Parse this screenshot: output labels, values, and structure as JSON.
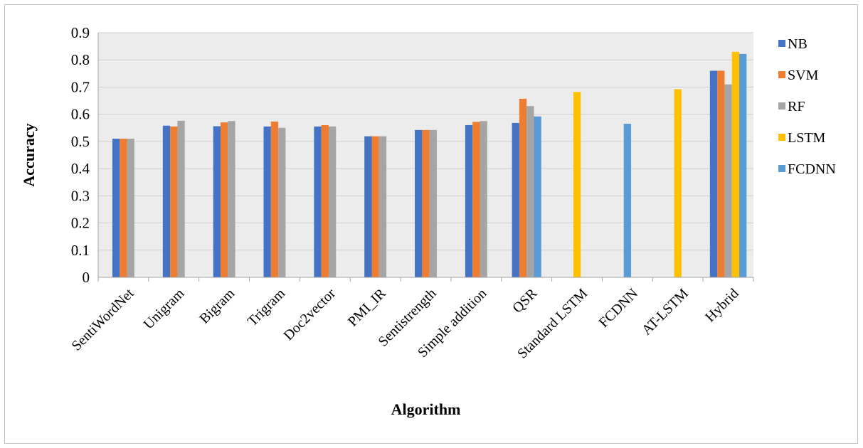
{
  "chart_data": {
    "type": "bar",
    "title": "",
    "xlabel": "Algorithm",
    "ylabel": "Accuracy",
    "ylim": [
      0,
      0.9
    ],
    "yticks": [
      "0",
      "0.1",
      "0.2",
      "0.3",
      "0.4",
      "0.5",
      "0.6",
      "0.7",
      "0.8",
      "0.9"
    ],
    "grid": true,
    "legend_position": "right",
    "categories": [
      "SentiWordNet",
      "Unigram",
      "Bigram",
      "Trigram",
      "Doc2vector",
      "PMI_IR",
      "Sentistrength",
      "Simple addition",
      "QSR",
      "Standard LSTM",
      "FCDNN",
      "AT-LSTM",
      "Hybrid"
    ],
    "series": [
      {
        "name": "NB",
        "color": "#4472c4",
        "values": [
          0.51,
          0.558,
          0.556,
          0.555,
          0.555,
          0.519,
          0.542,
          0.56,
          0.568,
          null,
          null,
          null,
          0.76
        ]
      },
      {
        "name": "SVM",
        "color": "#ed7d31",
        "values": [
          0.51,
          0.555,
          0.57,
          0.573,
          0.56,
          0.519,
          0.542,
          0.572,
          0.657,
          null,
          null,
          null,
          0.76
        ]
      },
      {
        "name": "RF",
        "color": "#a5a5a5",
        "values": [
          0.51,
          0.576,
          0.575,
          0.55,
          0.555,
          0.519,
          0.542,
          0.575,
          0.63,
          null,
          null,
          null,
          0.71
        ]
      },
      {
        "name": "LSTM",
        "color": "#ffc000",
        "values": [
          null,
          null,
          null,
          null,
          null,
          null,
          null,
          null,
          null,
          0.682,
          null,
          0.692,
          0.83
        ]
      },
      {
        "name": "FCDNN",
        "color": "#5b9bd5",
        "values": [
          null,
          null,
          null,
          null,
          null,
          null,
          null,
          null,
          0.592,
          null,
          0.565,
          null,
          0.822
        ]
      }
    ]
  }
}
